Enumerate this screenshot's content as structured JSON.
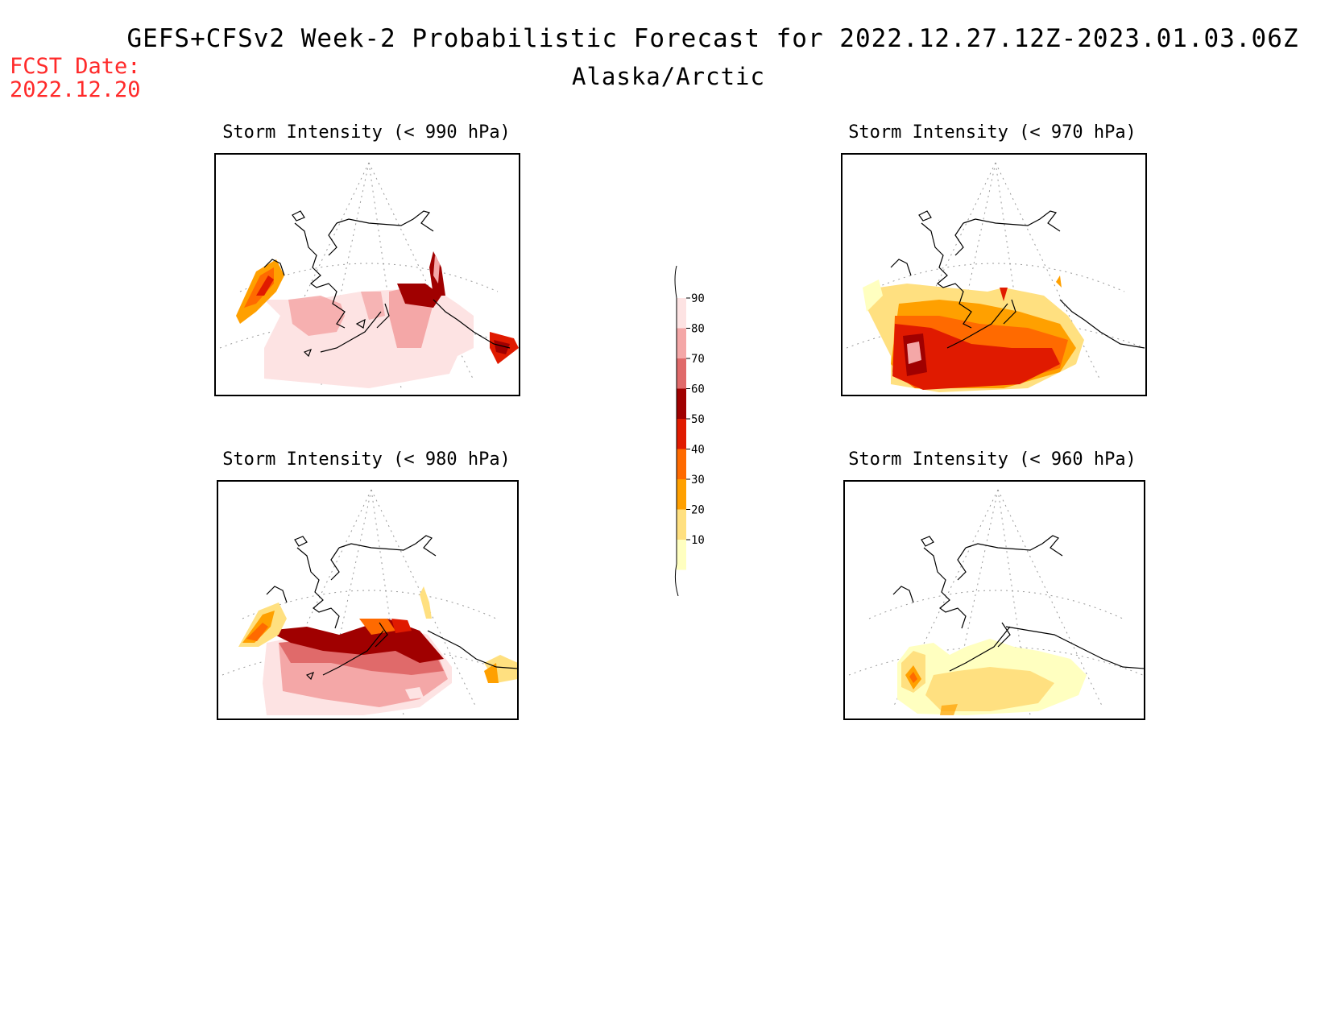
{
  "header": {
    "title": "GEFS+CFSv2 Week-2 Probabilistic Forecast for 2022.12.27.12Z-2023.01.03.06Z",
    "region": "Alaska/Arctic",
    "fcst_label": "FCST Date:",
    "fcst_date": "2022.12.20"
  },
  "panels": [
    {
      "id": "p990",
      "title": "Storm Intensity (< 990 hPa)",
      "dominant_level": 90
    },
    {
      "id": "p970",
      "title": "Storm Intensity (< 970 hPa)",
      "dominant_level": 50
    },
    {
      "id": "p980",
      "title": "Storm Intensity (< 980 hPa)",
      "dominant_level": 80
    },
    {
      "id": "p960",
      "title": "Storm Intensity (< 960 hPa)",
      "dominant_level": 20
    }
  ],
  "colorbar": {
    "levels": [
      "90",
      "80",
      "70",
      "60",
      "50",
      "40",
      "30",
      "20",
      "10"
    ],
    "colors": [
      "#fde3e3",
      "#f4a7a7",
      "#e06a6a",
      "#a00000",
      "#e01a00",
      "#ff6a00",
      "#ffa000",
      "#ffe080",
      "#ffffc0"
    ]
  }
}
